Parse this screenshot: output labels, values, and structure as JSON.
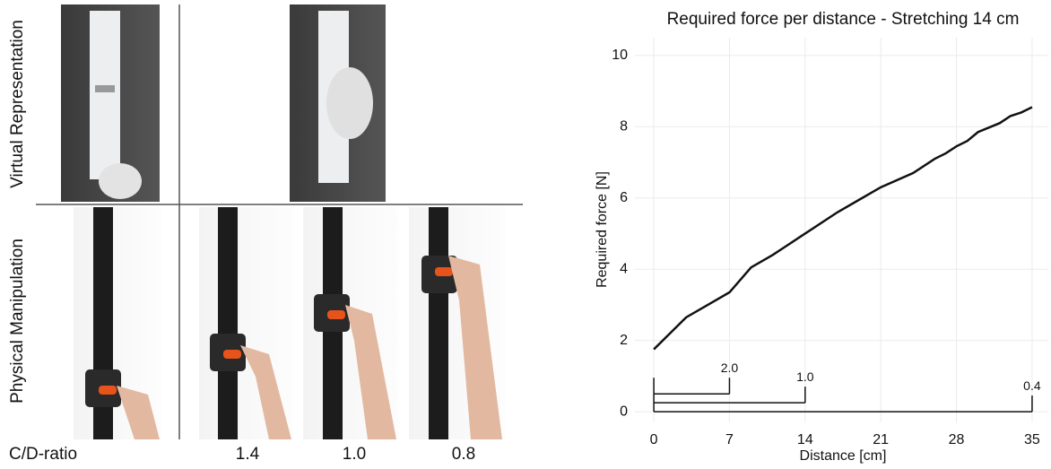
{
  "figure": {
    "row_labels": [
      "Virtual Representation",
      "Physical Manipulation"
    ],
    "ratio_label": "C/D-ratio",
    "ratios": [
      "1.4",
      "1.0",
      "0.8"
    ]
  },
  "chart_data": {
    "type": "line",
    "title": "Required force per distance - Stretching 14 cm",
    "x_label": "Distance [cm]",
    "y_label": "Required force [N]",
    "x": [
      0,
      1,
      2,
      3,
      5,
      7,
      9,
      11,
      12,
      14,
      17,
      19,
      21,
      24,
      26,
      27,
      28,
      29,
      30,
      32,
      33,
      34,
      35
    ],
    "values": [
      1.75,
      2.05,
      2.35,
      2.65,
      3.0,
      3.35,
      4.05,
      4.4,
      4.6,
      5.0,
      5.6,
      5.95,
      6.3,
      6.7,
      7.1,
      7.25,
      7.45,
      7.6,
      7.85,
      8.1,
      8.3,
      8.4,
      8.55
    ],
    "color": "#111111",
    "xlim": [
      -1.75,
      36.5
    ],
    "xticks": [
      0,
      7,
      14,
      21,
      28,
      35
    ],
    "ylim": [
      -0.3,
      10.5
    ],
    "yticks": [
      0,
      2,
      4,
      6,
      8,
      10
    ],
    "grid": true,
    "brackets": [
      {
        "label": "2.0",
        "x_end": 7,
        "y": 0.5
      },
      {
        "label": "1.0",
        "x_end": 14,
        "y": 0.25
      },
      {
        "label": "0.4",
        "x_end": 35,
        "y": 0
      }
    ]
  }
}
